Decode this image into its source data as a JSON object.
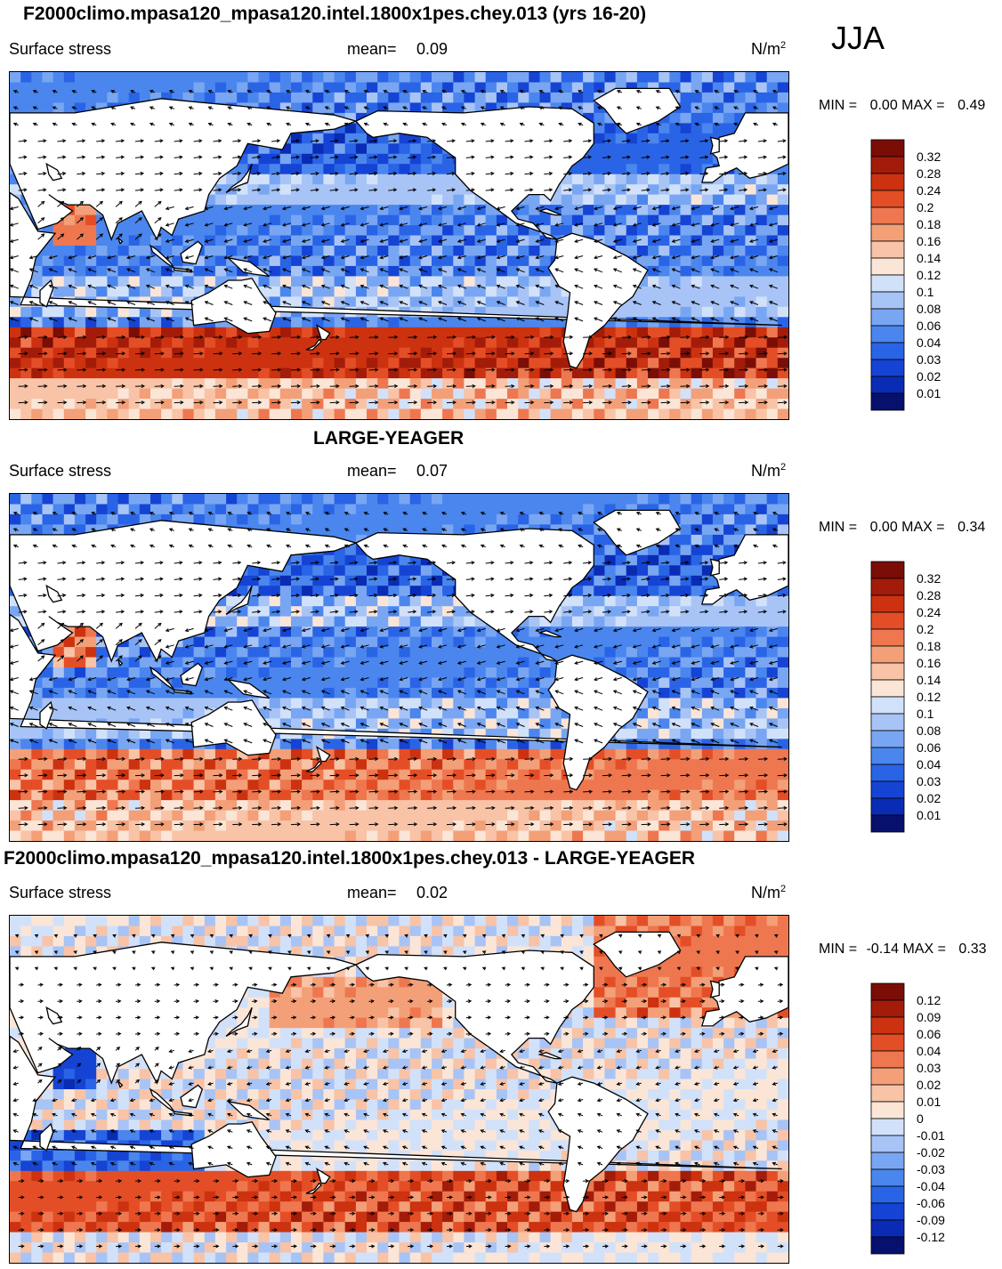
{
  "season": "JJA",
  "colors": {
    "sequential": [
      "#08106e",
      "#0a2cb4",
      "#1544d4",
      "#2a64e6",
      "#4a86ee",
      "#79a6f2",
      "#a8c4f6",
      "#d2e1fa",
      "#fbe5d6",
      "#f8c3a6",
      "#f39f78",
      "#ee7750",
      "#e44e26",
      "#cc3210",
      "#a31c0a",
      "#7a0e06"
    ],
    "diverging": [
      "#08106e",
      "#0a2cb4",
      "#1544d4",
      "#2a64e6",
      "#4a86ee",
      "#79a6f2",
      "#a8c4f6",
      "#d2e1fa",
      "#fbe5d6",
      "#f8c3a6",
      "#f39f78",
      "#ee7750",
      "#e44e26",
      "#cc3210",
      "#a31c0a",
      "#7a0e06"
    ]
  },
  "chart_data": [
    {
      "type": "heatmap",
      "title": "F2000climo.mpasa120_mpasa120.intel.1800x1pes.chey.013 (yrs 16-20)",
      "variable": "Surface stress",
      "mean_label": "mean=",
      "mean": "0.09",
      "units": "N/m",
      "units_sup": "2",
      "min_label": "MIN =",
      "min": "0.00",
      "max_label": "MAX =",
      "max": "0.49",
      "colorbar_labels": [
        "0.32",
        "0.28",
        "0.24",
        "0.2",
        "0.18",
        "0.16",
        "0.14",
        "0.12",
        "0.1",
        "0.08",
        "0.06",
        "0.04",
        "0.03",
        "0.02",
        "0.01"
      ],
      "colorbar_type": "sequential"
    },
    {
      "type": "heatmap",
      "title": "LARGE-YEAGER",
      "variable": "Surface stress",
      "mean_label": "mean=",
      "mean": "0.07",
      "units": "N/m",
      "units_sup": "2",
      "min_label": "MIN =",
      "min": "0.00",
      "max_label": "MAX =",
      "max": "0.34",
      "colorbar_labels": [
        "0.32",
        "0.28",
        "0.24",
        "0.2",
        "0.18",
        "0.16",
        "0.14",
        "0.12",
        "0.1",
        "0.08",
        "0.06",
        "0.04",
        "0.03",
        "0.02",
        "0.01"
      ],
      "colorbar_type": "sequential"
    },
    {
      "type": "heatmap",
      "title": "F2000climo.mpasa120_mpasa120.intel.1800x1pes.chey.013 - LARGE-YEAGER",
      "variable": "Surface stress",
      "mean_label": "mean=",
      "mean": "0.02",
      "units": "N/m",
      "units_sup": "2",
      "min_label": "MIN =",
      "min": "-0.14",
      "max_label": "MAX =",
      "max": "0.33",
      "colorbar_labels": [
        "0.12",
        "0.09",
        "0.06",
        "0.04",
        "0.03",
        "0.02",
        "0.01",
        "0",
        "-0.01",
        "-0.02",
        "-0.03",
        "-0.04",
        "-0.06",
        "-0.09",
        "-0.12"
      ],
      "colorbar_type": "diverging"
    }
  ]
}
